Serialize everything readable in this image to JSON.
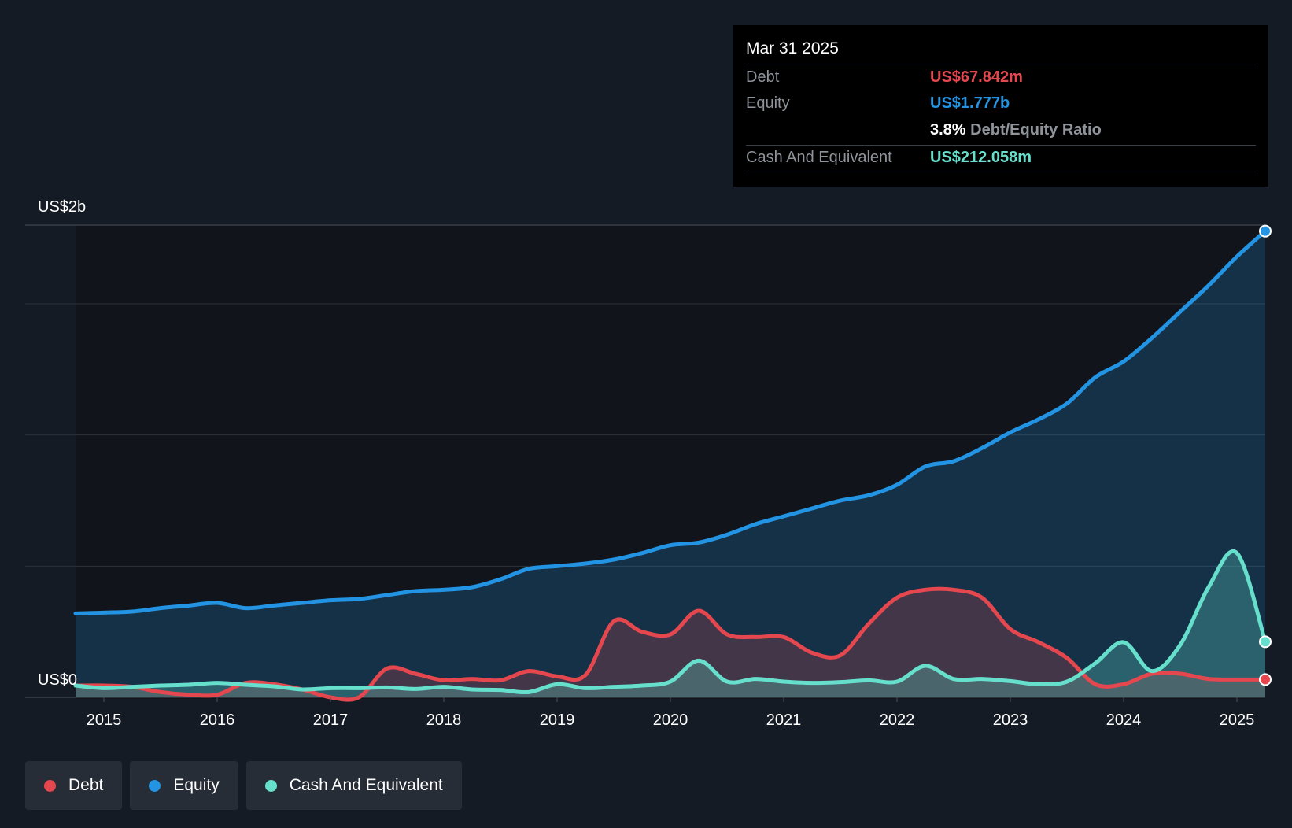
{
  "tooltip": {
    "date": "Mar 31 2025",
    "debt_label": "Debt",
    "debt_value": "US$67.842m",
    "equity_label": "Equity",
    "equity_value": "US$1.777b",
    "ratio_value": "3.8%",
    "ratio_label": "Debt/Equity Ratio",
    "cash_label": "Cash And Equivalent",
    "cash_value": "US$212.058m"
  },
  "legend": [
    {
      "label": "Debt",
      "color": "#e5474f"
    },
    {
      "label": "Equity",
      "color": "#2394e3"
    },
    {
      "label": "Cash And Equivalent",
      "color": "#66e0cc"
    }
  ],
  "chart_data": {
    "type": "area",
    "title": "",
    "xlabel": "",
    "ylabel": "",
    "y_top_label": "US$2b",
    "y_bottom_label": "US$0",
    "ylim": [
      0,
      1.8
    ],
    "xlim": [
      2014.75,
      2025.25
    ],
    "x_ticks": [
      "2015",
      "2016",
      "2017",
      "2018",
      "2019",
      "2020",
      "2021",
      "2022",
      "2023",
      "2024",
      "2025"
    ],
    "gridlines": [
      0.5,
      1.0,
      1.5,
      1.8
    ],
    "colors": {
      "debt": "#e5474f",
      "equity": "#2394e3",
      "cash": "#66e0cc"
    },
    "series": [
      {
        "name": "Equity",
        "key": "equity",
        "points": [
          [
            2014.75,
            0.32
          ],
          [
            2015.0,
            0.323
          ],
          [
            2015.25,
            0.327
          ],
          [
            2015.5,
            0.34
          ],
          [
            2015.75,
            0.35
          ],
          [
            2016.0,
            0.36
          ],
          [
            2016.25,
            0.34
          ],
          [
            2016.5,
            0.35
          ],
          [
            2016.75,
            0.36
          ],
          [
            2017.0,
            0.37
          ],
          [
            2017.25,
            0.375
          ],
          [
            2017.5,
            0.39
          ],
          [
            2017.75,
            0.405
          ],
          [
            2018.0,
            0.41
          ],
          [
            2018.25,
            0.42
          ],
          [
            2018.5,
            0.45
          ],
          [
            2018.75,
            0.49
          ],
          [
            2019.0,
            0.5
          ],
          [
            2019.25,
            0.51
          ],
          [
            2019.5,
            0.525
          ],
          [
            2019.75,
            0.55
          ],
          [
            2020.0,
            0.58
          ],
          [
            2020.25,
            0.59
          ],
          [
            2020.5,
            0.62
          ],
          [
            2020.75,
            0.66
          ],
          [
            2021.0,
            0.69
          ],
          [
            2021.25,
            0.72
          ],
          [
            2021.5,
            0.75
          ],
          [
            2021.75,
            0.77
          ],
          [
            2022.0,
            0.81
          ],
          [
            2022.25,
            0.88
          ],
          [
            2022.5,
            0.9
          ],
          [
            2022.75,
            0.95
          ],
          [
            2023.0,
            1.01
          ],
          [
            2023.25,
            1.06
          ],
          [
            2023.5,
            1.12
          ],
          [
            2023.75,
            1.22
          ],
          [
            2024.0,
            1.28
          ],
          [
            2024.25,
            1.37
          ],
          [
            2024.5,
            1.47
          ],
          [
            2024.75,
            1.57
          ],
          [
            2025.0,
            1.68
          ],
          [
            2025.25,
            1.777
          ]
        ]
      },
      {
        "name": "Debt",
        "key": "debt",
        "points": [
          [
            2014.75,
            0.045
          ],
          [
            2015.0,
            0.045
          ],
          [
            2015.25,
            0.04
          ],
          [
            2015.5,
            0.02
          ],
          [
            2015.75,
            0.01
          ],
          [
            2016.0,
            0.01
          ],
          [
            2016.25,
            0.055
          ],
          [
            2016.5,
            0.05
          ],
          [
            2016.75,
            0.03
          ],
          [
            2017.0,
            0.0
          ],
          [
            2017.25,
            0.0
          ],
          [
            2017.5,
            0.11
          ],
          [
            2017.75,
            0.09
          ],
          [
            2018.0,
            0.065
          ],
          [
            2018.25,
            0.07
          ],
          [
            2018.5,
            0.065
          ],
          [
            2018.75,
            0.1
          ],
          [
            2019.0,
            0.08
          ],
          [
            2019.25,
            0.085
          ],
          [
            2019.5,
            0.29
          ],
          [
            2019.75,
            0.25
          ],
          [
            2020.0,
            0.24
          ],
          [
            2020.25,
            0.33
          ],
          [
            2020.5,
            0.24
          ],
          [
            2020.75,
            0.23
          ],
          [
            2021.0,
            0.23
          ],
          [
            2021.25,
            0.17
          ],
          [
            2021.5,
            0.16
          ],
          [
            2021.75,
            0.28
          ],
          [
            2022.0,
            0.38
          ],
          [
            2022.25,
            0.41
          ],
          [
            2022.5,
            0.41
          ],
          [
            2022.75,
            0.38
          ],
          [
            2023.0,
            0.26
          ],
          [
            2023.25,
            0.21
          ],
          [
            2023.5,
            0.15
          ],
          [
            2023.75,
            0.05
          ],
          [
            2024.0,
            0.05
          ],
          [
            2024.25,
            0.09
          ],
          [
            2024.5,
            0.09
          ],
          [
            2024.75,
            0.07
          ],
          [
            2025.0,
            0.068
          ],
          [
            2025.25,
            0.068
          ]
        ]
      },
      {
        "name": "Cash And Equivalent",
        "key": "cash",
        "points": [
          [
            2014.75,
            0.045
          ],
          [
            2015.0,
            0.035
          ],
          [
            2015.25,
            0.04
          ],
          [
            2015.5,
            0.045
          ],
          [
            2015.75,
            0.048
          ],
          [
            2016.0,
            0.055
          ],
          [
            2016.25,
            0.048
          ],
          [
            2016.5,
            0.042
          ],
          [
            2016.75,
            0.03
          ],
          [
            2017.0,
            0.035
          ],
          [
            2017.25,
            0.035
          ],
          [
            2017.5,
            0.038
          ],
          [
            2017.75,
            0.032
          ],
          [
            2018.0,
            0.04
          ],
          [
            2018.25,
            0.03
          ],
          [
            2018.5,
            0.028
          ],
          [
            2018.75,
            0.02
          ],
          [
            2019.0,
            0.05
          ],
          [
            2019.25,
            0.035
          ],
          [
            2019.5,
            0.04
          ],
          [
            2019.75,
            0.045
          ],
          [
            2020.0,
            0.06
          ],
          [
            2020.25,
            0.14
          ],
          [
            2020.5,
            0.06
          ],
          [
            2020.75,
            0.07
          ],
          [
            2021.0,
            0.06
          ],
          [
            2021.25,
            0.055
          ],
          [
            2021.5,
            0.058
          ],
          [
            2021.75,
            0.065
          ],
          [
            2022.0,
            0.06
          ],
          [
            2022.25,
            0.12
          ],
          [
            2022.5,
            0.07
          ],
          [
            2022.75,
            0.07
          ],
          [
            2023.0,
            0.062
          ],
          [
            2023.25,
            0.05
          ],
          [
            2023.5,
            0.06
          ],
          [
            2023.75,
            0.13
          ],
          [
            2024.0,
            0.21
          ],
          [
            2024.25,
            0.1
          ],
          [
            2024.5,
            0.2
          ],
          [
            2024.75,
            0.42
          ],
          [
            2025.0,
            0.55
          ],
          [
            2025.25,
            0.212
          ]
        ]
      }
    ]
  }
}
